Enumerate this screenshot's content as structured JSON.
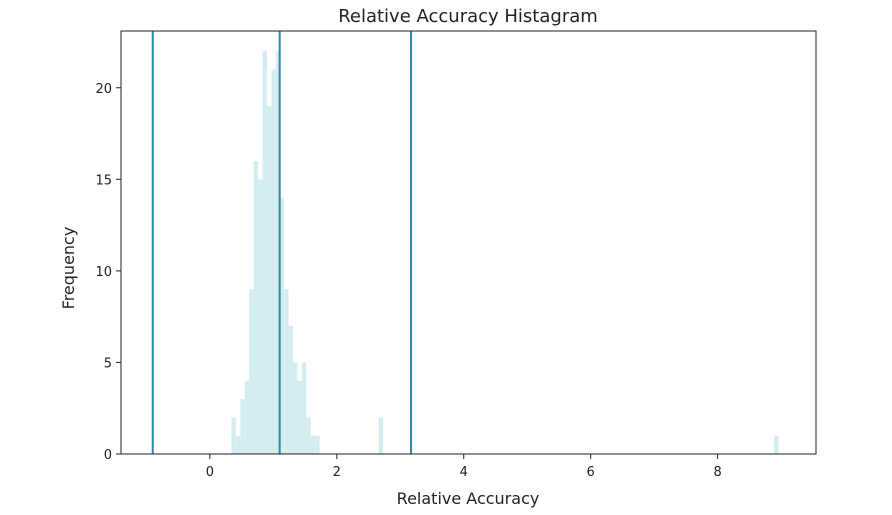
{
  "chart_data": {
    "type": "bar",
    "title": "Relative Accuracy Histagram",
    "xlabel": "Relative Accuracy",
    "ylabel": "Frequency",
    "xlim": [
      -1.4,
      9.55
    ],
    "ylim": [
      0,
      23.1
    ],
    "xticks": [
      0,
      2,
      4,
      6,
      8
    ],
    "yticks": [
      0,
      5,
      10,
      15,
      20
    ],
    "grid": false,
    "bar_color": "#d4edf1",
    "line_color": "#2e86a8",
    "bin_width": 0.0693,
    "bins": [
      {
        "x": 0.34,
        "count": 2
      },
      {
        "x": 0.41,
        "count": 1
      },
      {
        "x": 0.48,
        "count": 3
      },
      {
        "x": 0.55,
        "count": 4
      },
      {
        "x": 0.62,
        "count": 9
      },
      {
        "x": 0.69,
        "count": 16
      },
      {
        "x": 0.76,
        "count": 15
      },
      {
        "x": 0.83,
        "count": 22
      },
      {
        "x": 0.9,
        "count": 19
      },
      {
        "x": 0.97,
        "count": 21
      },
      {
        "x": 1.04,
        "count": 22
      },
      {
        "x": 1.1,
        "count": 14
      },
      {
        "x": 1.17,
        "count": 9
      },
      {
        "x": 1.24,
        "count": 7
      },
      {
        "x": 1.31,
        "count": 5
      },
      {
        "x": 1.38,
        "count": 4
      },
      {
        "x": 1.45,
        "count": 5
      },
      {
        "x": 1.52,
        "count": 2
      },
      {
        "x": 1.59,
        "count": 1
      },
      {
        "x": 1.66,
        "count": 1
      },
      {
        "x": 2.66,
        "count": 2
      },
      {
        "x": 8.89,
        "count": 1
      }
    ],
    "vlines": [
      -0.9,
      1.1,
      3.17
    ]
  }
}
